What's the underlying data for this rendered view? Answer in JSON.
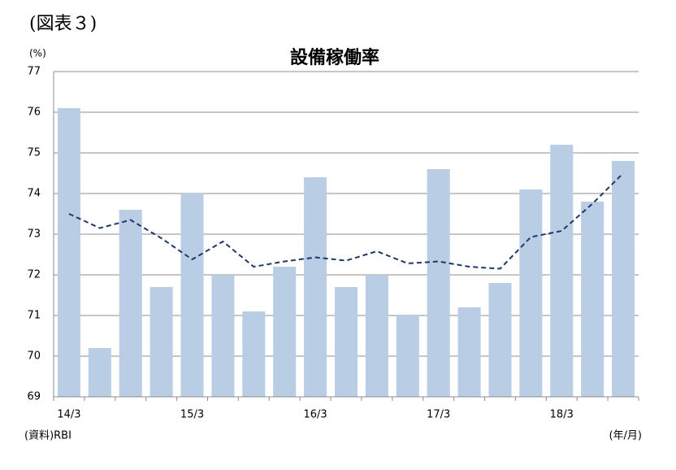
{
  "chart_data": {
    "type": "bar",
    "figure_label": "(図表３)",
    "title": "設備稼働率",
    "y_label": "(%)",
    "x_label": "(年/月)",
    "source": "(資料)RBI",
    "categories": [
      "14/3",
      null,
      null,
      null,
      "15/3",
      null,
      null,
      null,
      "16/3",
      null,
      null,
      null,
      "17/3",
      null,
      null,
      null,
      "18/3",
      null,
      null
    ],
    "series": [
      {
        "type": "bar",
        "color": "#b9cde5",
        "values": [
          76.1,
          70.2,
          73.6,
          71.7,
          74.0,
          72.0,
          71.1,
          72.2,
          74.4,
          71.7,
          72.0,
          71.0,
          74.6,
          71.2,
          71.8,
          74.1,
          75.2,
          73.8,
          74.8
        ]
      },
      {
        "type": "line",
        "color": "#1f3864",
        "dashed": true,
        "values": [
          73.5,
          73.15,
          73.35,
          72.9,
          72.38,
          72.82,
          72.2,
          72.33,
          72.43,
          72.35,
          72.58,
          72.28,
          72.33,
          72.2,
          72.15,
          72.93,
          73.08,
          73.75,
          74.5
        ]
      }
    ],
    "ylim": [
      69,
      77
    ],
    "yticks": [
      69,
      70,
      71,
      72,
      73,
      74,
      75,
      76,
      77
    ],
    "grid": true
  }
}
